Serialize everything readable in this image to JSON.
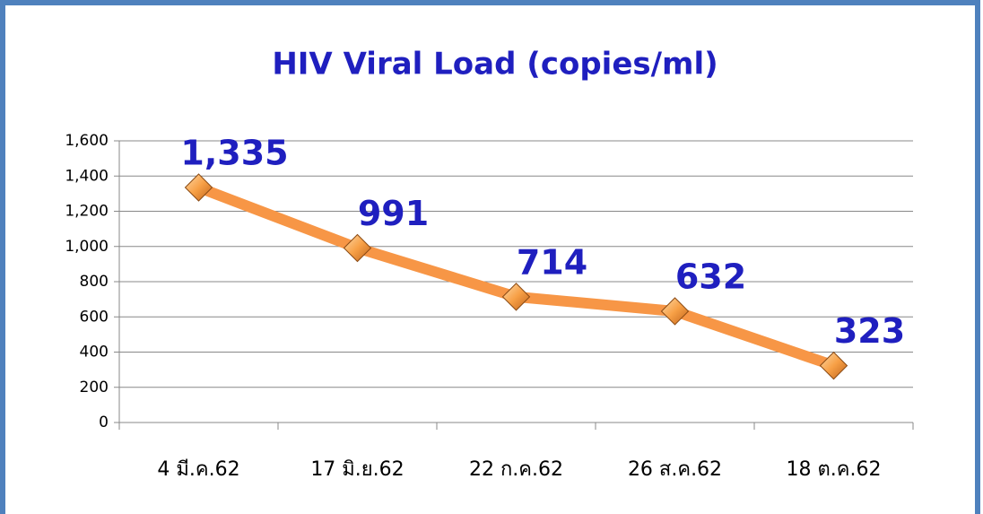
{
  "chart_data": {
    "type": "line",
    "title": "HIV Viral Load (copies/ml)",
    "categories": [
      "4 มี.ค.62",
      "17 มิ.ย.62",
      "22 ก.ค.62",
      "26 ส.ค.62",
      "18 ต.ค.62"
    ],
    "values": [
      1335,
      991,
      714,
      632,
      323
    ],
    "value_labels": [
      "1,335",
      "991",
      "714",
      "632",
      "323"
    ],
    "color": "#f79646",
    "ylim": [
      0,
      1600
    ],
    "yticks": [
      0,
      200,
      400,
      600,
      800,
      {
        "value": 1000,
        "label": "1,000"
      },
      {
        "value": 1200,
        "label": "1,200"
      },
      {
        "value": 1400,
        "label": "1,400"
      },
      {
        "value": 1600,
        "label": "1,600"
      }
    ],
    "grid": true
  }
}
